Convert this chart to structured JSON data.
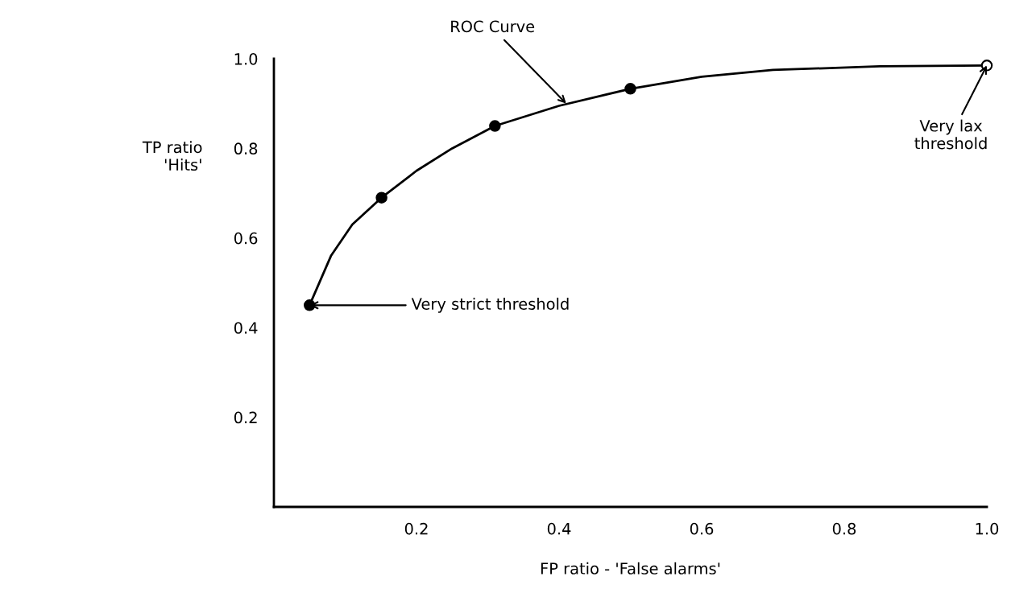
{
  "chart_data": {
    "type": "line",
    "xlabel": "FP ratio - 'False alarms'",
    "ylabel": "TP ratio\n'Hits'",
    "series": [
      {
        "color": "#000000",
        "marker": "none",
        "x": [
          0.05,
          0.08,
          0.11,
          0.151,
          0.2,
          0.25,
          0.31,
          0.4,
          0.5,
          0.6,
          0.7,
          0.85,
          1.0
        ],
        "values": [
          0.45,
          0.56,
          0.63,
          0.69,
          0.75,
          0.8,
          0.85,
          0.895,
          0.933,
          0.96,
          0.975,
          0.983,
          0.985
        ]
      },
      {
        "type": "scatter",
        "marker": "circle",
        "colors": [
          "#000000",
          "#000000",
          "#000000",
          "#000000",
          "#ffffff"
        ],
        "x": [
          0.05,
          0.151,
          0.31,
          0.5,
          1.0
        ],
        "values": [
          0.45,
          0.69,
          0.85,
          0.933,
          0.985
        ]
      }
    ],
    "xlim": [
      0,
      1.0
    ],
    "ylim": [
      0,
      1.0
    ],
    "xticks": [
      {
        "value": 0.2,
        "label": "0.2"
      },
      {
        "value": 0.4,
        "label": "0.4"
      },
      {
        "value": 0.6,
        "label": "0.6"
      },
      {
        "value": 0.8,
        "label": "0.8"
      },
      {
        "value": 1.0,
        "label": "1.0"
      }
    ],
    "yticks": [
      {
        "value": 0.2,
        "label": "0.2"
      },
      {
        "value": 0.4,
        "label": "0.4"
      },
      {
        "value": 0.6,
        "label": "0.6"
      },
      {
        "value": 0.8,
        "label": "0.8"
      },
      {
        "value": 1.0,
        "label": "1.0"
      }
    ],
    "grid": false,
    "annotations": [
      {
        "text": "ROC Curve",
        "x": 0.41,
        "y": 0.9
      },
      {
        "text": "Very strict threshold",
        "x": 0.05,
        "y": 0.45
      },
      {
        "text": "Very lax\nthreshold",
        "x": 1.0,
        "y": 0.985
      }
    ]
  }
}
